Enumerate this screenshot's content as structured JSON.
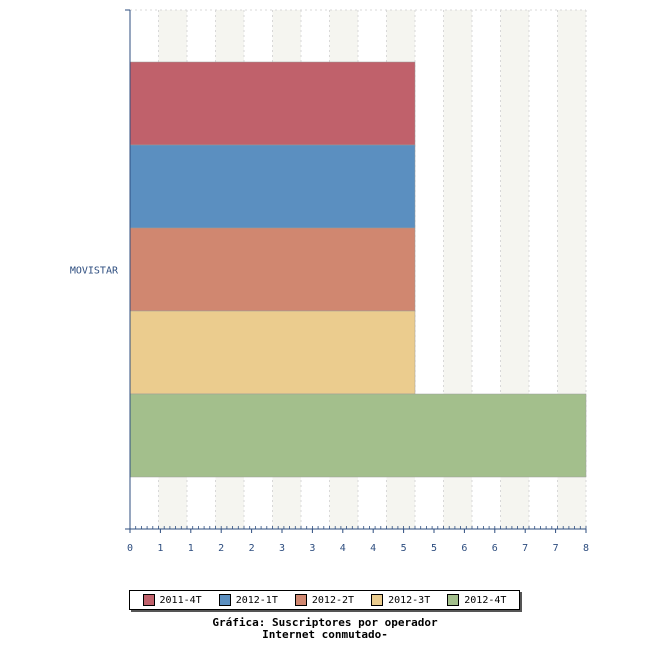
{
  "chart_data": {
    "type": "bar",
    "orientation": "horizontal",
    "categories": [
      "MOVISTAR"
    ],
    "series": [
      {
        "name": "2011-4T",
        "values": [
          5
        ],
        "color": "#c0616b"
      },
      {
        "name": "2012-1T",
        "values": [
          5
        ],
        "color": "#5b8fc0"
      },
      {
        "name": "2012-2T",
        "values": [
          5
        ],
        "color": "#d08770"
      },
      {
        "name": "2012-3T",
        "values": [
          5
        ],
        "color": "#ebcc8e"
      },
      {
        "name": "2012-4T",
        "values": [
          8
        ],
        "color": "#a3bf8c"
      }
    ],
    "xticks": [
      "0",
      "1",
      "1",
      "2",
      "2",
      "3",
      "3",
      "4",
      "4",
      "5",
      "5",
      "6",
      "6",
      "7",
      "7",
      "8"
    ],
    "xlim": [
      0,
      8
    ],
    "grid": true,
    "legend_position": "bottom",
    "title_line1": "Gráfica: Suscriptores por operador",
    "title_line2": "Internet conmutado-"
  }
}
